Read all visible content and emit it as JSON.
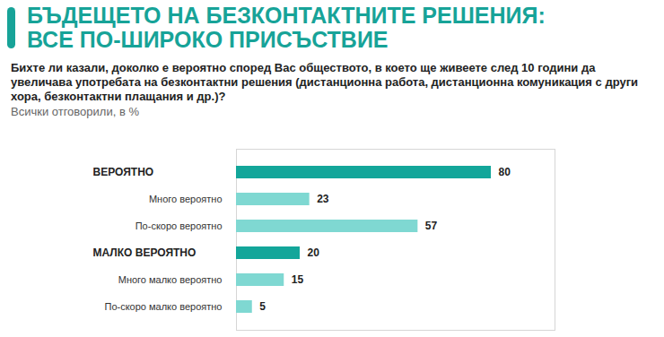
{
  "chart_data": {
    "type": "bar",
    "orientation": "horizontal",
    "title": "БЪДЕЩЕТО НА БЕЗКОНТАКТНИТЕ РЕШЕНИЯ:\nВСЕ ПО-ШИРОКО ПРИСЪСТВИЕ",
    "subtitle": "Бихте ли казали, доколко е вероятно според Вас обществото, в което ще живеете след 10 години да увеличава употребата на безконтактни решения (дистанционна работа, дистанционна комуникация с други хора, безконтактни плащания и др.)?",
    "annotations": [
      "Всички отговорили, в %"
    ],
    "categories": [
      "ВЕРОЯТНО",
      "Много вероятно",
      "По-скоро вероятно",
      "МАЛКО ВЕРОЯТНО",
      "Много малко вероятно",
      "По-скоро малко вероятно"
    ],
    "values": [
      80,
      23,
      57,
      20,
      15,
      5
    ],
    "colors": [
      "#13a69a",
      "#7fd8d2",
      "#7fd8d2",
      "#13a69a",
      "#7fd8d2",
      "#7fd8d2"
    ],
    "xlim": [
      0,
      100
    ],
    "data_labels": true,
    "tick_labels": "y"
  }
}
